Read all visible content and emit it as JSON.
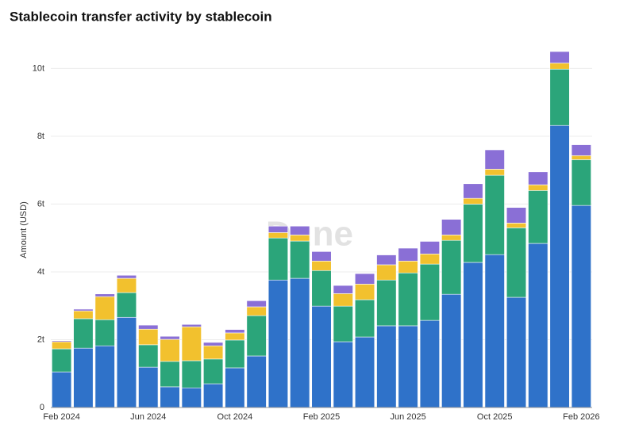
{
  "chart_data": {
    "type": "stacked_bar",
    "title": "Stablecoin transfer activity by stablecoin",
    "y_label": "Amount (USD)",
    "watermark": "Dune",
    "categories": [
      "Feb 2024",
      null,
      null,
      null,
      "Jun 2024",
      null,
      null,
      null,
      "Oct 2024",
      null,
      null,
      null,
      "Feb 2025",
      null,
      null,
      null,
      "Jun 2025",
      null,
      null,
      null,
      "Oct 2025",
      null,
      null,
      null,
      "Feb 2026"
    ],
    "series": [
      {
        "color": "#2f72c9",
        "values": [
          1.05,
          1.75,
          1.82,
          2.66,
          1.19,
          0.61,
          0.58,
          0.7,
          1.17,
          1.52,
          3.76,
          3.81,
          2.99,
          1.94,
          2.08,
          2.41,
          2.41,
          2.57,
          3.34,
          4.28,
          4.51,
          3.25,
          4.84,
          8.32,
          5.96
        ]
      },
      {
        "color": "#2ba57a",
        "values": [
          0.68,
          0.87,
          0.77,
          0.73,
          0.66,
          0.75,
          0.8,
          0.73,
          0.82,
          1.19,
          1.24,
          1.1,
          1.05,
          1.05,
          1.1,
          1.35,
          1.56,
          1.66,
          1.59,
          1.72,
          2.34,
          2.05,
          1.56,
          1.66,
          1.35
        ]
      },
      {
        "color": "#f2c12e",
        "values": [
          0.21,
          0.23,
          0.68,
          0.42,
          0.46,
          0.65,
          1.0,
          0.39,
          0.21,
          0.26,
          0.16,
          0.18,
          0.28,
          0.37,
          0.46,
          0.45,
          0.35,
          0.3,
          0.16,
          0.17,
          0.18,
          0.14,
          0.17,
          0.18,
          0.12
        ]
      },
      {
        "color": "#8a6fd6",
        "values": [
          0.03,
          0.05,
          0.08,
          0.09,
          0.12,
          0.09,
          0.07,
          0.1,
          0.1,
          0.18,
          0.19,
          0.26,
          0.28,
          0.24,
          0.31,
          0.29,
          0.38,
          0.37,
          0.46,
          0.43,
          0.57,
          0.46,
          0.38,
          0.34,
          0.32
        ]
      }
    ],
    "ylim": [
      0,
      10.5
    ],
    "yticks": [
      0,
      {
        "value": 2,
        "label": "2t"
      },
      {
        "value": 4,
        "label": "4t"
      },
      {
        "value": 6,
        "label": "6t"
      },
      {
        "value": 8,
        "label": "8t"
      },
      {
        "value": 10,
        "label": "10t"
      }
    ],
    "grid": true
  }
}
